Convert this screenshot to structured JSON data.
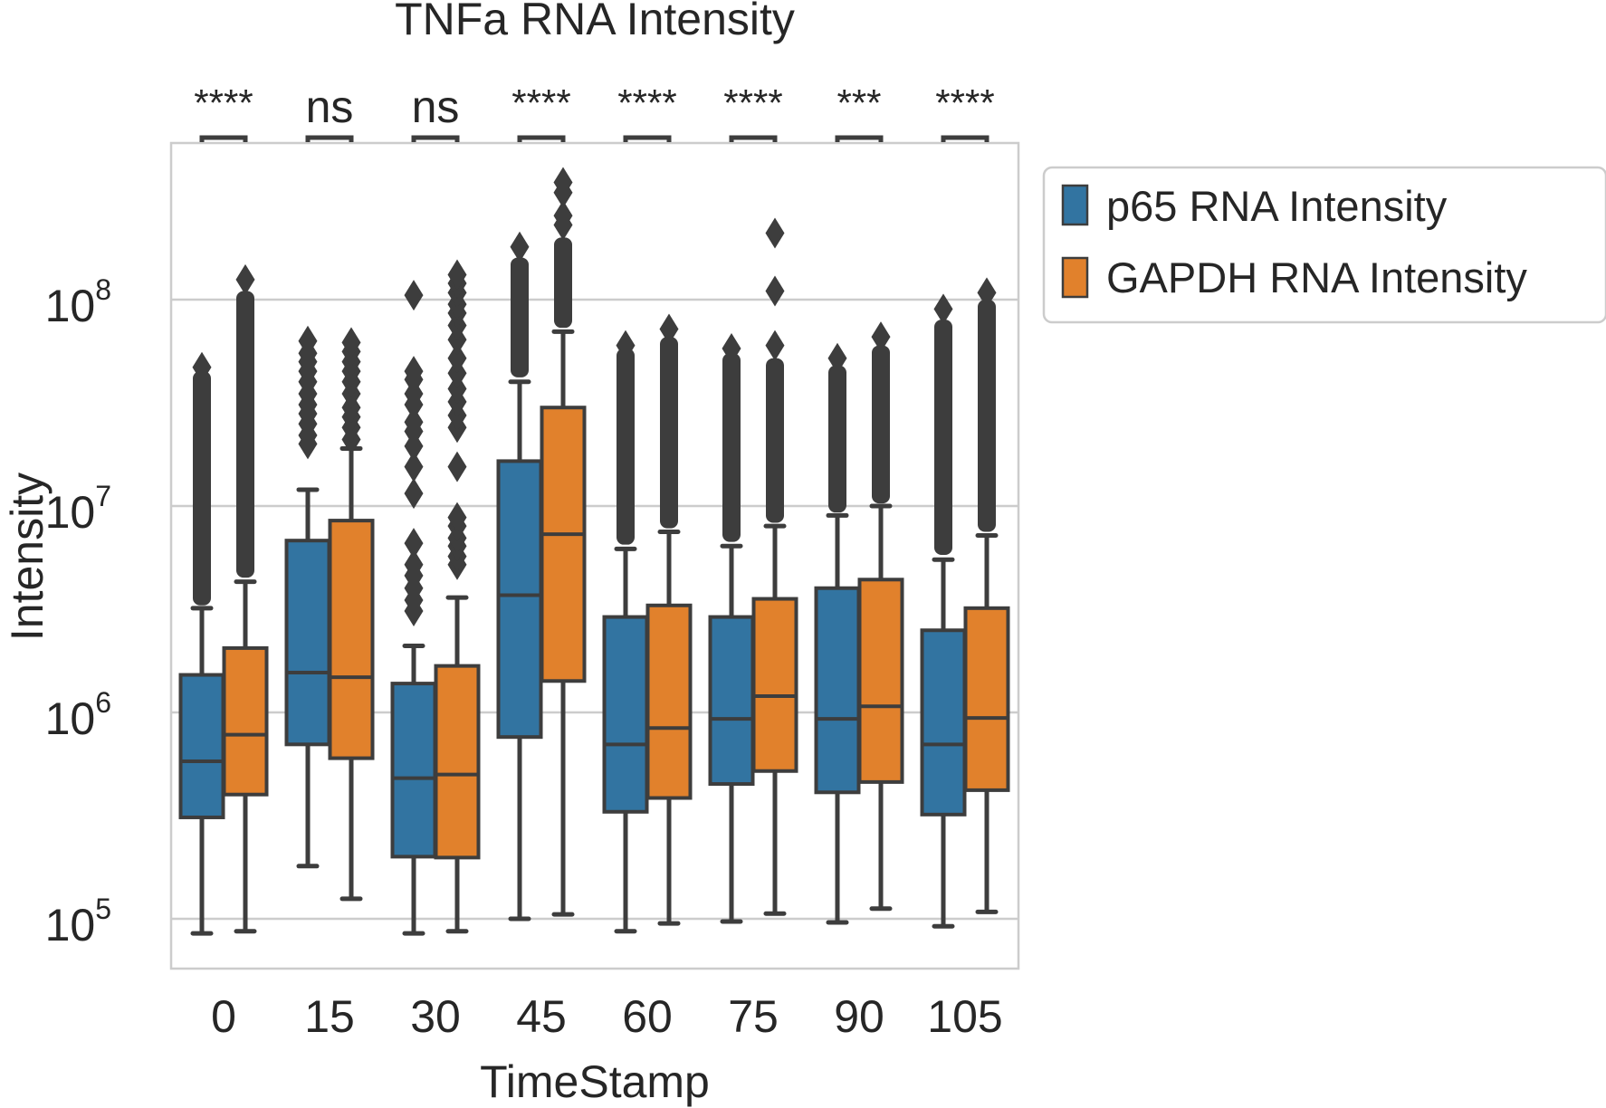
{
  "chart_data": {
    "type": "box",
    "title": "TNFa RNA Intensity",
    "xlabel": "TimeStamp",
    "ylabel": "Intensity",
    "yscale": "log",
    "ylim": [
      55000,
      550000000
    ],
    "yticks": [
      {
        "value": 100000,
        "base": "10",
        "exp": "5"
      },
      {
        "value": 1000000,
        "base": "10",
        "exp": "6"
      },
      {
        "value": 10000000,
        "base": "10",
        "exp": "7"
      },
      {
        "value": 100000000,
        "base": "10",
        "exp": "8"
      }
    ],
    "grid": true,
    "legend_position": "outside-right",
    "colors": {
      "p65": "#3274a1",
      "gapdh": "#e1812c",
      "edge": "#3d3d3d",
      "grid": "#cccccc"
    },
    "categories": [
      "0",
      "15",
      "30",
      "45",
      "60",
      "75",
      "90",
      "105"
    ],
    "significance": [
      "****",
      "ns",
      "ns",
      "****",
      "****",
      "****",
      "***",
      "****"
    ],
    "series": [
      {
        "name": "p65 RNA Intensity",
        "color": "#3274a1",
        "boxes": [
          {
            "whislo": 85000,
            "q1": 310000,
            "med": 580000,
            "q3": 1520000,
            "whishi": 3200000,
            "outliers_dense": [
              3300000,
              45000000
            ],
            "outliers": [
              47000000
            ]
          },
          {
            "whislo": 180000,
            "q1": 700000,
            "med": 1560000,
            "q3": 6800000,
            "whishi": 12000000,
            "outliers": [
              20000000,
              22000000,
              25000000,
              28000000,
              31000000,
              35000000,
              40000000,
              45000000,
              50000000,
              55000000,
              63000000
            ]
          },
          {
            "whislo": 85000,
            "q1": 200000,
            "med": 480000,
            "q3": 1380000,
            "whishi": 2100000,
            "outliers": [
              3100000,
              3500000,
              4000000,
              4600000,
              5200000,
              6600000,
              11500000,
              15500000,
              19500000,
              23000000,
              25500000,
              31000000,
              35000000,
              41000000,
              45000000,
              105000000
            ]
          },
          {
            "whislo": 100000,
            "q1": 760000,
            "med": 3700000,
            "q3": 16500000,
            "whishi": 40000000,
            "outliers_dense": [
              42000000,
              160000000
            ],
            "outliers": [
              180000000
            ]
          },
          {
            "whislo": 87000,
            "q1": 330000,
            "med": 700000,
            "q3": 2900000,
            "whishi": 6200000,
            "outliers_dense": [
              6500000,
              58000000
            ],
            "outliers": [
              60000000
            ]
          },
          {
            "whislo": 97000,
            "q1": 450000,
            "med": 930000,
            "q3": 2900000,
            "whishi": 6400000,
            "outliers_dense": [
              6700000,
              55000000
            ],
            "outliers": [
              58000000
            ]
          },
          {
            "whislo": 96000,
            "q1": 410000,
            "med": 930000,
            "q3": 4000000,
            "whishi": 9000000,
            "outliers_dense": [
              9300000,
              48000000
            ],
            "outliers": [
              52000000
            ]
          },
          {
            "whislo": 92000,
            "q1": 320000,
            "med": 700000,
            "q3": 2500000,
            "whishi": 5500000,
            "outliers_dense": [
              5800000,
              80000000
            ],
            "outliers": [
              90000000
            ]
          }
        ]
      },
      {
        "name": "GAPDH RNA Intensity",
        "color": "#e1812c",
        "boxes": [
          {
            "whislo": 87000,
            "q1": 400000,
            "med": 780000,
            "q3": 2050000,
            "whishi": 4300000,
            "outliers_dense": [
              4500000,
              110000000
            ],
            "outliers": [
              125000000
            ]
          },
          {
            "whislo": 125000,
            "q1": 600000,
            "med": 1480000,
            "q3": 8500000,
            "whishi": 19000000,
            "outliers": [
              21000000,
              24000000,
              27000000,
              30000000,
              35000000,
              40000000,
              45000000,
              50000000,
              56000000,
              62000000
            ]
          },
          {
            "whislo": 87000,
            "q1": 198000,
            "med": 500000,
            "q3": 1680000,
            "whishi": 3600000,
            "outliers": [
              5200000,
              5700000,
              6400000,
              7000000,
              8000000,
              8800000,
              15500000,
              24000000,
              27500000,
              32000000,
              37000000,
              44000000,
              52000000,
              64000000,
              75000000,
              86000000,
              95000000,
              108000000,
              120000000,
              132000000
            ]
          },
          {
            "whislo": 105000,
            "q1": 1420000,
            "med": 7300000,
            "q3": 30000000,
            "whishi": 70000000,
            "outliers_dense": [
              73000000,
              200000000
            ],
            "outliers": [
              230000000,
              255000000,
              330000000,
              370000000
            ]
          },
          {
            "whislo": 95000,
            "q1": 385000,
            "med": 840000,
            "q3": 3300000,
            "whishi": 7500000,
            "outliers_dense": [
              7800000,
              66000000
            ],
            "outliers": [
              72000000
            ]
          },
          {
            "whislo": 106000,
            "q1": 520000,
            "med": 1200000,
            "q3": 3550000,
            "whishi": 8000000,
            "outliers_dense": [
              8300000,
              52000000
            ],
            "outliers": [
              60000000,
              110000000,
              210000000
            ]
          },
          {
            "whislo": 112000,
            "q1": 460000,
            "med": 1070000,
            "q3": 4400000,
            "whishi": 10000000,
            "outliers_dense": [
              10300000,
              60000000
            ],
            "outliers": [
              66000000
            ]
          },
          {
            "whislo": 108000,
            "q1": 420000,
            "med": 940000,
            "q3": 3200000,
            "whishi": 7200000,
            "outliers_dense": [
              7500000,
              100000000
            ],
            "outliers": [
              108000000
            ]
          }
        ]
      }
    ]
  }
}
